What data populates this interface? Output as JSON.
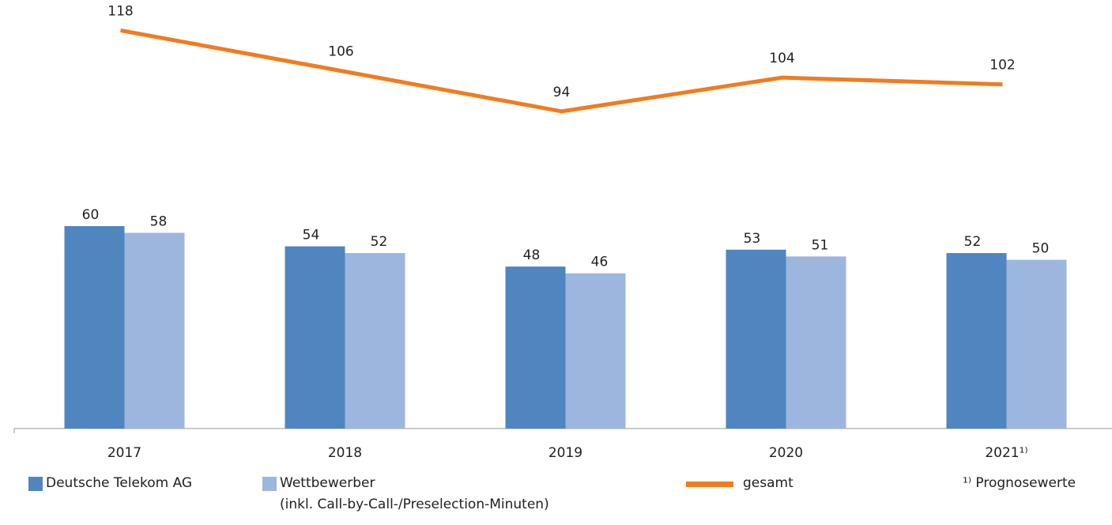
{
  "chart_data": {
    "type": "bar_line",
    "categories": [
      "2017",
      "2018",
      "2019",
      "2020",
      "2021¹⁾"
    ],
    "series": [
      {
        "name": "Deutsche Telekom AG",
        "color": "#4f86c0",
        "type": "bar",
        "values": [
          60,
          54,
          48,
          53,
          52
        ]
      },
      {
        "name": "Wettbewerber\n(inkl. Call-by-Call-/Preselection-Minuten)",
        "color": "#9db6de",
        "type": "bar",
        "values": [
          58,
          52,
          46,
          51,
          50
        ]
      },
      {
        "name": "gesamt",
        "color": "#f07c1f",
        "type": "line",
        "values": [
          118,
          106,
          94,
          104,
          102
        ]
      }
    ],
    "ylim": [
      0,
      127
    ],
    "footnote": "¹⁾ Prognosewerte"
  }
}
